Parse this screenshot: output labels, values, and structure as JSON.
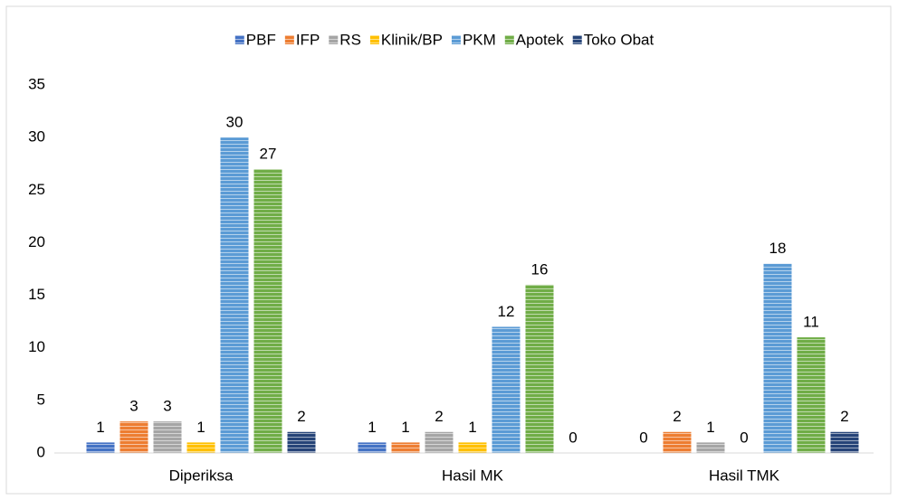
{
  "chart_data": {
    "type": "bar",
    "categories": [
      "Diperiksa",
      "Hasil MK",
      "Hasil TMK"
    ],
    "series": [
      {
        "name": "PBF",
        "color": "#4472c4",
        "values": [
          1,
          1,
          0
        ]
      },
      {
        "name": "IFP",
        "color": "#ed7d31",
        "values": [
          3,
          1,
          2
        ]
      },
      {
        "name": "RS",
        "color": "#a5a5a5",
        "values": [
          3,
          2,
          1
        ]
      },
      {
        "name": "Klinik/BP",
        "color": "#ffc000",
        "values": [
          1,
          1,
          0
        ]
      },
      {
        "name": "PKM",
        "color": "#5b9bd5",
        "values": [
          30,
          12,
          18
        ]
      },
      {
        "name": "Apotek",
        "color": "#70ad47",
        "values": [
          27,
          16,
          11
        ]
      },
      {
        "name": "Toko Obat",
        "color": "#264478",
        "values": [
          2,
          0,
          2
        ]
      }
    ],
    "ylim": [
      0,
      35
    ],
    "yticks": [
      0,
      5,
      10,
      15,
      20,
      25,
      30,
      35
    ],
    "grid": false,
    "legend": "top"
  }
}
